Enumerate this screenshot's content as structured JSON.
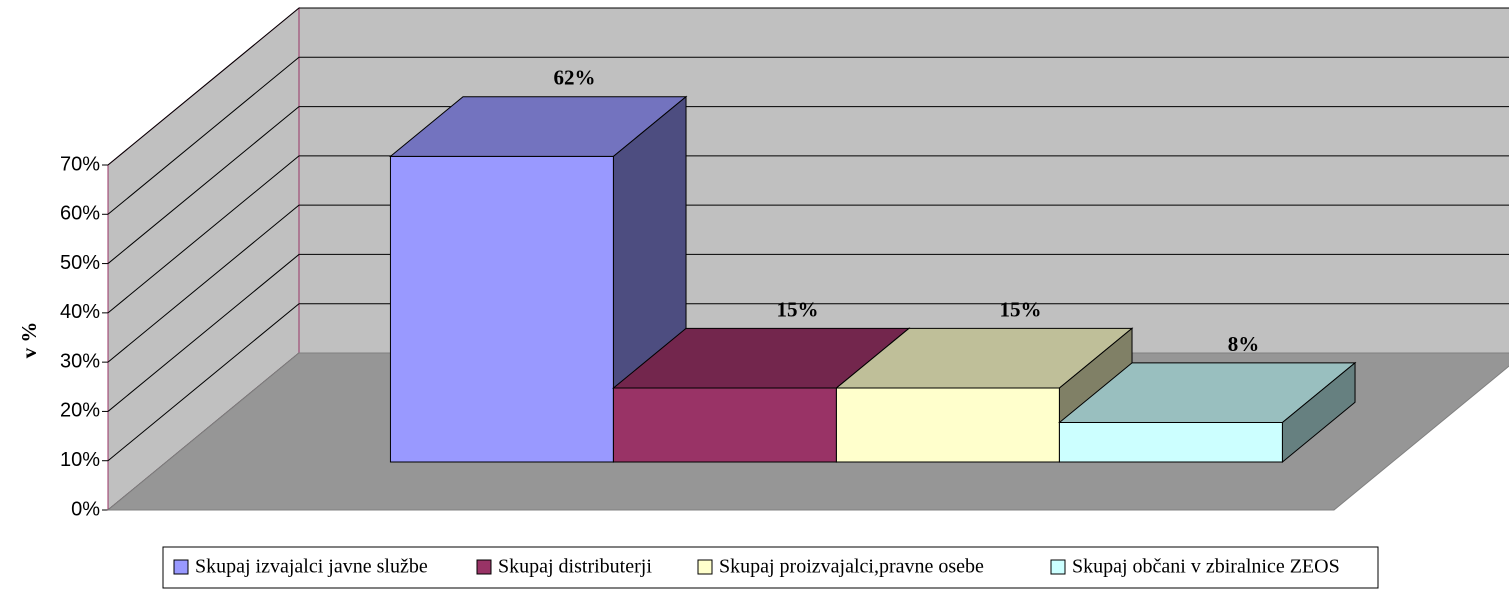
{
  "chart_data": {
    "type": "bar3d",
    "y_label": "v %",
    "ylim": [
      0,
      70
    ],
    "yticks": [
      {
        "value": 0,
        "label": "0%"
      },
      {
        "value": 10,
        "label": "10%"
      },
      {
        "value": 20,
        "label": "20%"
      },
      {
        "value": 30,
        "label": "30%"
      },
      {
        "value": 40,
        "label": "40%"
      },
      {
        "value": 50,
        "label": "50%"
      },
      {
        "value": 60,
        "label": "60%"
      },
      {
        "value": 70,
        "label": "70%"
      }
    ],
    "grid": true,
    "legend": "bottom",
    "series": [
      {
        "name": "Skupaj izvajalci javne službe",
        "color": "#9999ff",
        "values": [
          62
        ],
        "value_labels": [
          "62%"
        ]
      },
      {
        "name": "Skupaj distributerji",
        "color": "#993366",
        "values": [
          15
        ],
        "value_labels": [
          "15%"
        ]
      },
      {
        "name": "Skupaj proizvajalci,pravne osebe",
        "color": "#ffffcc",
        "values": [
          15
        ],
        "value_labels": [
          "15%"
        ]
      },
      {
        "name": "Skupaj občani v zbiralnice ZEOS",
        "color": "#ccffff",
        "values": [
          8
        ],
        "value_labels": [
          "8%"
        ]
      }
    ]
  }
}
